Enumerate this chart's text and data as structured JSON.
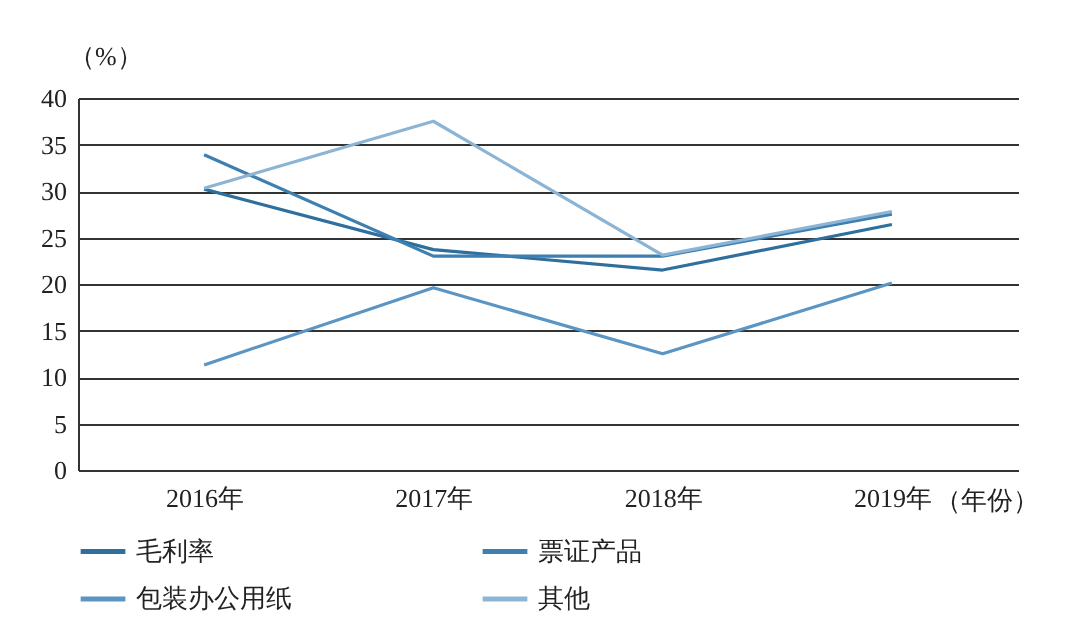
{
  "chart_data": {
    "type": "line",
    "xlabel": "（年份）",
    "ylabel": "（%）",
    "categories": [
      "2016年",
      "2017年",
      "2018年",
      "2019年"
    ],
    "series": [
      {
        "name": "毛利率",
        "color": "#2e6f9e",
        "values": [
          30.2,
          23.7,
          21.5,
          26.4
        ]
      },
      {
        "name": "票证产品",
        "color": "#3d7fb0",
        "values": [
          33.9,
          23.0,
          23.0,
          27.5
        ]
      },
      {
        "name": "包装办公用纸",
        "color": "#5b95c4",
        "values": [
          11.3,
          19.6,
          12.5,
          20.1
        ]
      },
      {
        "name": "其他",
        "color": "#8cb4d4",
        "values": [
          30.3,
          37.5,
          23.1,
          27.8
        ]
      }
    ],
    "ylim": [
      0,
      40
    ],
    "yticks": [
      0,
      5,
      10,
      15,
      20,
      25,
      30,
      35,
      40
    ],
    "grid": "y",
    "legend": "bottom",
    "marker": "none",
    "line_style": "solid"
  }
}
